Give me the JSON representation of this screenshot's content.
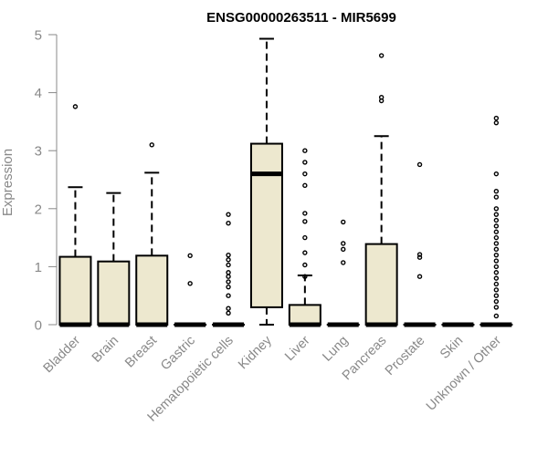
{
  "chart_data": {
    "type": "boxplot",
    "title": "ENSG00000263511 - MIR5699",
    "xlabel": "",
    "ylabel": "Expression",
    "ylim": [
      0,
      5
    ],
    "yticks": [
      0,
      1,
      2,
      3,
      4,
      5
    ],
    "grid": false,
    "box_fill": "#EDE8CF",
    "categories": [
      "Bladder",
      "Brain",
      "Breast",
      "Gastric",
      "Hematopoietic cells",
      "Kidney",
      "Liver",
      "Lung",
      "Pancreas",
      "Prostate",
      "Skin",
      "Unknown / Other"
    ],
    "boxes": [
      {
        "q1": 0,
        "median": 0,
        "q3": 1.17,
        "whisker_low": 0,
        "whisker_high": 2.37,
        "outliers": [
          3.76
        ]
      },
      {
        "q1": 0,
        "median": 0,
        "q3": 1.09,
        "whisker_low": 0,
        "whisker_high": 2.27,
        "outliers": []
      },
      {
        "q1": 0,
        "median": 0,
        "q3": 1.19,
        "whisker_low": 0,
        "whisker_high": 2.62,
        "outliers": [
          3.1
        ]
      },
      {
        "q1": 0,
        "median": 0,
        "q3": 0,
        "whisker_low": 0,
        "whisker_high": 0,
        "outliers": [
          1.19,
          0.71
        ]
      },
      {
        "q1": 0,
        "median": 0,
        "q3": 0,
        "whisker_low": 0,
        "whisker_high": 0,
        "outliers": [
          1.9,
          1.75,
          1.2,
          1.12,
          1.03,
          0.9,
          0.83,
          0.74,
          0.65,
          0.5,
          0.28,
          0.2
        ]
      },
      {
        "q1": 0.3,
        "median": 2.6,
        "q3": 3.12,
        "whisker_low": 0,
        "whisker_high": 4.93,
        "outliers": []
      },
      {
        "q1": 0,
        "median": 0,
        "q3": 0.34,
        "whisker_low": 0,
        "whisker_high": 0.85,
        "outliers": [
          3.0,
          2.8,
          2.6,
          2.4,
          1.92,
          1.78,
          1.5,
          1.24,
          1.03,
          0.83
        ]
      },
      {
        "q1": 0,
        "median": 0,
        "q3": 0,
        "whisker_low": 0,
        "whisker_high": 0,
        "outliers": [
          1.77,
          1.4,
          1.3,
          1.07
        ]
      },
      {
        "q1": 0,
        "median": 0,
        "q3": 1.39,
        "whisker_low": 0,
        "whisker_high": 3.25,
        "outliers": [
          4.64,
          3.92,
          3.86
        ]
      },
      {
        "q1": 0,
        "median": 0,
        "q3": 0,
        "whisker_low": 0,
        "whisker_high": 0,
        "outliers": [
          2.76,
          1.21,
          1.16,
          0.83
        ]
      },
      {
        "q1": 0,
        "median": 0,
        "q3": 0,
        "whisker_low": 0,
        "whisker_high": 0,
        "outliers": []
      },
      {
        "q1": 0,
        "median": 0,
        "q3": 0,
        "whisker_low": 0,
        "whisker_high": 0,
        "outliers": [
          3.56,
          3.48,
          2.6,
          2.3,
          2.2,
          2.0,
          1.9,
          1.8,
          1.7,
          1.6,
          1.5,
          1.4,
          1.3,
          1.2,
          1.1,
          1.0,
          0.9,
          0.8,
          0.7,
          0.6,
          0.5,
          0.4,
          0.3,
          0.15
        ]
      }
    ]
  }
}
